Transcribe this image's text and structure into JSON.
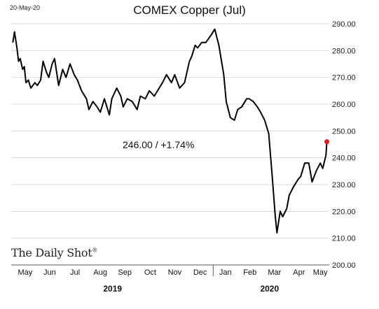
{
  "header": {
    "date_stamp": "20-May-20",
    "title": "COMEX Copper (Jul)"
  },
  "annotation": "246.00  /  +1.74%",
  "brand": "The Daily Shot",
  "brand_mark": "®",
  "chart_data": {
    "type": "line",
    "title": "COMEX Copper (Jul)",
    "xlabel": "",
    "ylabel": "",
    "ylim": [
      200,
      290
    ],
    "yticks": [
      "290.00",
      "280.00",
      "270.00",
      "260.00",
      "250.00",
      "240.00",
      "230.00",
      "220.00",
      "210.00",
      "200.00"
    ],
    "ytick_values": [
      290,
      280,
      270,
      260,
      250,
      240,
      230,
      220,
      210,
      200
    ],
    "month_labels": [
      "May",
      "Jun",
      "Jul",
      "Aug",
      "Sep",
      "Oct",
      "Nov",
      "Dec",
      "Jan",
      "Feb",
      "Mar",
      "Apr",
      "May"
    ],
    "year_labels": [
      "2019",
      "2020"
    ],
    "grid": "horizontal",
    "line_color": "#000000",
    "last_point_color": "#e8191c",
    "last_value": 246.0,
    "series": [
      {
        "x": [
          "2019-05-01",
          "2019-05-03",
          "2019-05-06",
          "2019-05-08",
          "2019-05-10",
          "2019-05-13",
          "2019-05-15",
          "2019-05-17",
          "2019-05-20",
          "2019-05-23",
          "2019-05-28",
          "2019-05-31",
          "2019-06-04",
          "2019-06-07",
          "2019-06-11",
          "2019-06-14",
          "2019-06-18",
          "2019-06-21",
          "2019-06-26",
          "2019-07-01",
          "2019-07-05",
          "2019-07-10",
          "2019-07-15",
          "2019-07-19",
          "2019-07-24",
          "2019-07-30",
          "2019-08-02",
          "2019-08-07",
          "2019-08-12",
          "2019-08-16",
          "2019-08-21",
          "2019-08-27",
          "2019-08-30",
          "2019-09-05",
          "2019-09-10",
          "2019-09-13",
          "2019-09-18",
          "2019-09-24",
          "2019-09-30",
          "2019-10-04",
          "2019-10-10",
          "2019-10-15",
          "2019-10-21",
          "2019-10-25",
          "2019-10-31",
          "2019-11-05",
          "2019-11-11",
          "2019-11-15",
          "2019-11-21",
          "2019-11-27",
          "2019-12-03",
          "2019-12-06",
          "2019-12-10",
          "2019-12-13",
          "2019-12-18",
          "2019-12-23",
          "2019-12-30",
          "2020-01-03",
          "2020-01-08",
          "2020-01-14",
          "2020-01-17",
          "2020-01-22",
          "2020-01-27",
          "2020-01-31",
          "2020-02-05",
          "2020-02-11",
          "2020-02-14",
          "2020-02-19",
          "2020-02-24",
          "2020-02-28",
          "2020-03-04",
          "2020-03-09",
          "2020-03-13",
          "2020-03-17",
          "2020-03-19",
          "2020-03-23",
          "2020-03-26",
          "2020-03-31",
          "2020-04-03",
          "2020-04-08",
          "2020-04-14",
          "2020-04-17",
          "2020-04-22",
          "2020-04-27",
          "2020-05-01",
          "2020-05-06",
          "2020-05-11",
          "2020-05-14",
          "2020-05-18",
          "2020-05-19"
        ],
        "values": [
          283,
          287,
          281,
          276,
          277,
          273,
          274,
          268,
          269,
          266,
          268,
          267,
          269,
          276,
          272,
          270,
          275,
          277,
          267,
          273,
          270,
          275,
          271,
          269,
          265,
          262,
          258,
          261,
          259,
          257,
          262,
          256,
          262,
          266,
          263,
          259,
          262,
          261,
          258,
          263,
          262,
          265,
          263,
          265,
          268,
          271,
          268,
          271,
          266,
          268,
          276,
          278,
          282,
          281,
          283,
          283,
          286,
          288,
          282,
          271,
          261,
          255,
          254,
          258,
          259,
          262,
          262,
          261,
          259,
          257,
          254,
          249,
          234,
          218,
          212,
          220,
          218,
          221,
          226,
          229,
          232,
          233,
          238,
          238,
          231,
          235,
          238,
          236,
          241,
          246
        ]
      }
    ]
  }
}
